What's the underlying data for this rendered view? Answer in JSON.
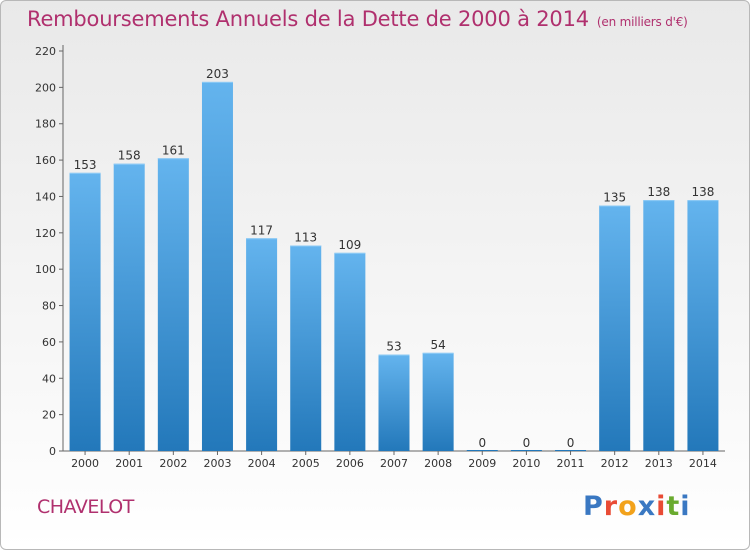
{
  "title": "Remboursements Annuels de la Dette de 2000 à 2014",
  "title_units": "(en milliers d'€)",
  "commune": "CHAVELOT",
  "logo": {
    "text": "Proxiti",
    "letters": [
      {
        "char": "P",
        "color": "#3a78c2"
      },
      {
        "char": "r",
        "color": "#e94b35"
      },
      {
        "char": "o",
        "color": "#f2a21c"
      },
      {
        "char": "x",
        "color": "#3a78c2"
      },
      {
        "char": "i",
        "color": "#e94b35"
      },
      {
        "char": "t",
        "color": "#6aab2f"
      },
      {
        "char": "i",
        "color": "#3a78c2"
      }
    ]
  },
  "colors": {
    "accent": "#b0306e",
    "bar_light": "#64b4ee",
    "bar_dark": "#2378ba"
  },
  "chart_data": {
    "type": "bar",
    "title": "Remboursements Annuels de la Dette de 2000 à 2014",
    "xlabel": "",
    "ylabel": "",
    "categories": [
      "2000",
      "2001",
      "2002",
      "2003",
      "2004",
      "2005",
      "2006",
      "2007",
      "2008",
      "2009",
      "2010",
      "2011",
      "2012",
      "2013",
      "2014"
    ],
    "values": [
      153,
      158,
      161,
      203,
      117,
      113,
      109,
      53,
      54,
      0,
      0,
      0,
      135,
      138,
      138
    ],
    "ylim": [
      0,
      220
    ],
    "yticks": [
      0,
      20,
      40,
      60,
      80,
      100,
      120,
      140,
      160,
      180,
      200,
      220
    ],
    "grid": false,
    "legend": "none"
  }
}
